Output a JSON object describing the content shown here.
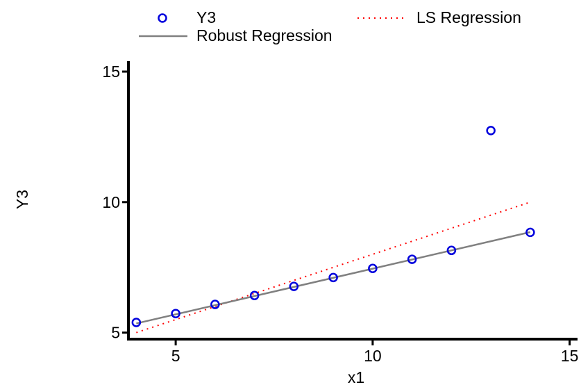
{
  "chart_data": {
    "type": "scatter",
    "xlabel": "x1",
    "ylabel": "Y3",
    "xlim": [
      3.8,
      15.2
    ],
    "ylim": [
      4.75,
      15.4
    ],
    "xticks": [
      5,
      10,
      15
    ],
    "yticks": [
      5,
      10,
      15
    ],
    "x_tick_labels": [
      "5",
      "10",
      "15"
    ],
    "y_tick_labels": [
      "5",
      "10",
      "15"
    ],
    "grid": false,
    "legend_position": "top",
    "series": [
      {
        "name": "Y3",
        "kind": "points",
        "color": "#0000dd",
        "x": [
          4,
          5,
          6,
          7,
          8,
          9,
          10,
          11,
          12,
          13,
          14
        ],
        "y": [
          5.39,
          5.73,
          6.08,
          6.42,
          6.77,
          7.11,
          7.46,
          7.81,
          8.15,
          12.74,
          8.84
        ]
      },
      {
        "name": "LS Regression",
        "kind": "line",
        "style": "dotted",
        "color": "#ff0000",
        "x": [
          4,
          14
        ],
        "y": [
          5.0,
          10.0
        ]
      },
      {
        "name": "Robust Regression",
        "kind": "line",
        "style": "solid",
        "color": "#808080",
        "x": [
          4,
          14
        ],
        "y": [
          5.35,
          8.85
        ]
      }
    ]
  }
}
